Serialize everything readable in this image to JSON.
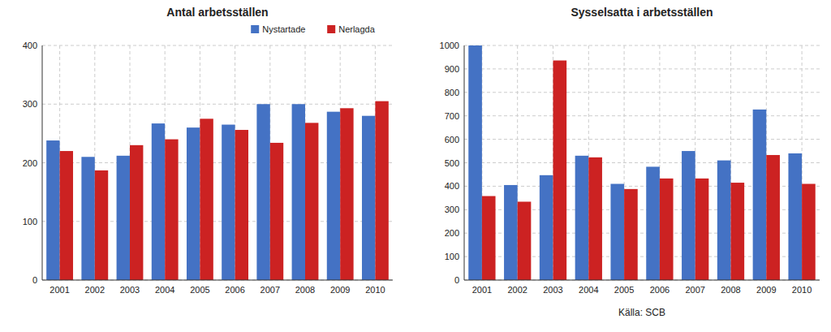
{
  "chart_data": [
    {
      "type": "bar",
      "title": "Antal arbetsställen",
      "categories": [
        "2001",
        "2002",
        "2003",
        "2004",
        "2005",
        "2006",
        "2007",
        "2008",
        "2009",
        "2010"
      ],
      "series": [
        {
          "name": "Nystartade",
          "color": "#4472C4",
          "values": [
            238,
            210,
            212,
            267,
            260,
            265,
            300,
            300,
            287,
            280
          ]
        },
        {
          "name": "Nerlagda",
          "color": "#CC2222",
          "values": [
            220,
            187,
            230,
            240,
            275,
            256,
            234,
            268,
            293,
            305
          ]
        }
      ],
      "ylim": [
        0,
        400
      ],
      "yticks": [
        0,
        100,
        200,
        300,
        400
      ],
      "grid": true,
      "legend": "right"
    },
    {
      "type": "bar",
      "title": "Sysselsatta i arbetsställen",
      "categories": [
        "2001",
        "2002",
        "2003",
        "2004",
        "2005",
        "2006",
        "2007",
        "2008",
        "2009",
        "2010"
      ],
      "series": [
        {
          "color": "#4472C4",
          "values": [
            1000,
            405,
            447,
            530,
            410,
            483,
            550,
            510,
            727,
            540
          ]
        },
        {
          "color": "#CC2222",
          "values": [
            358,
            334,
            936,
            523,
            388,
            433,
            433,
            415,
            533,
            410
          ]
        }
      ],
      "ylim": [
        0,
        1000
      ],
      "yticks": [
        0,
        100,
        200,
        300,
        400,
        500,
        600,
        700,
        800,
        900,
        1000
      ],
      "grid": true,
      "annotations": [
        "Källa: SCB"
      ]
    }
  ]
}
